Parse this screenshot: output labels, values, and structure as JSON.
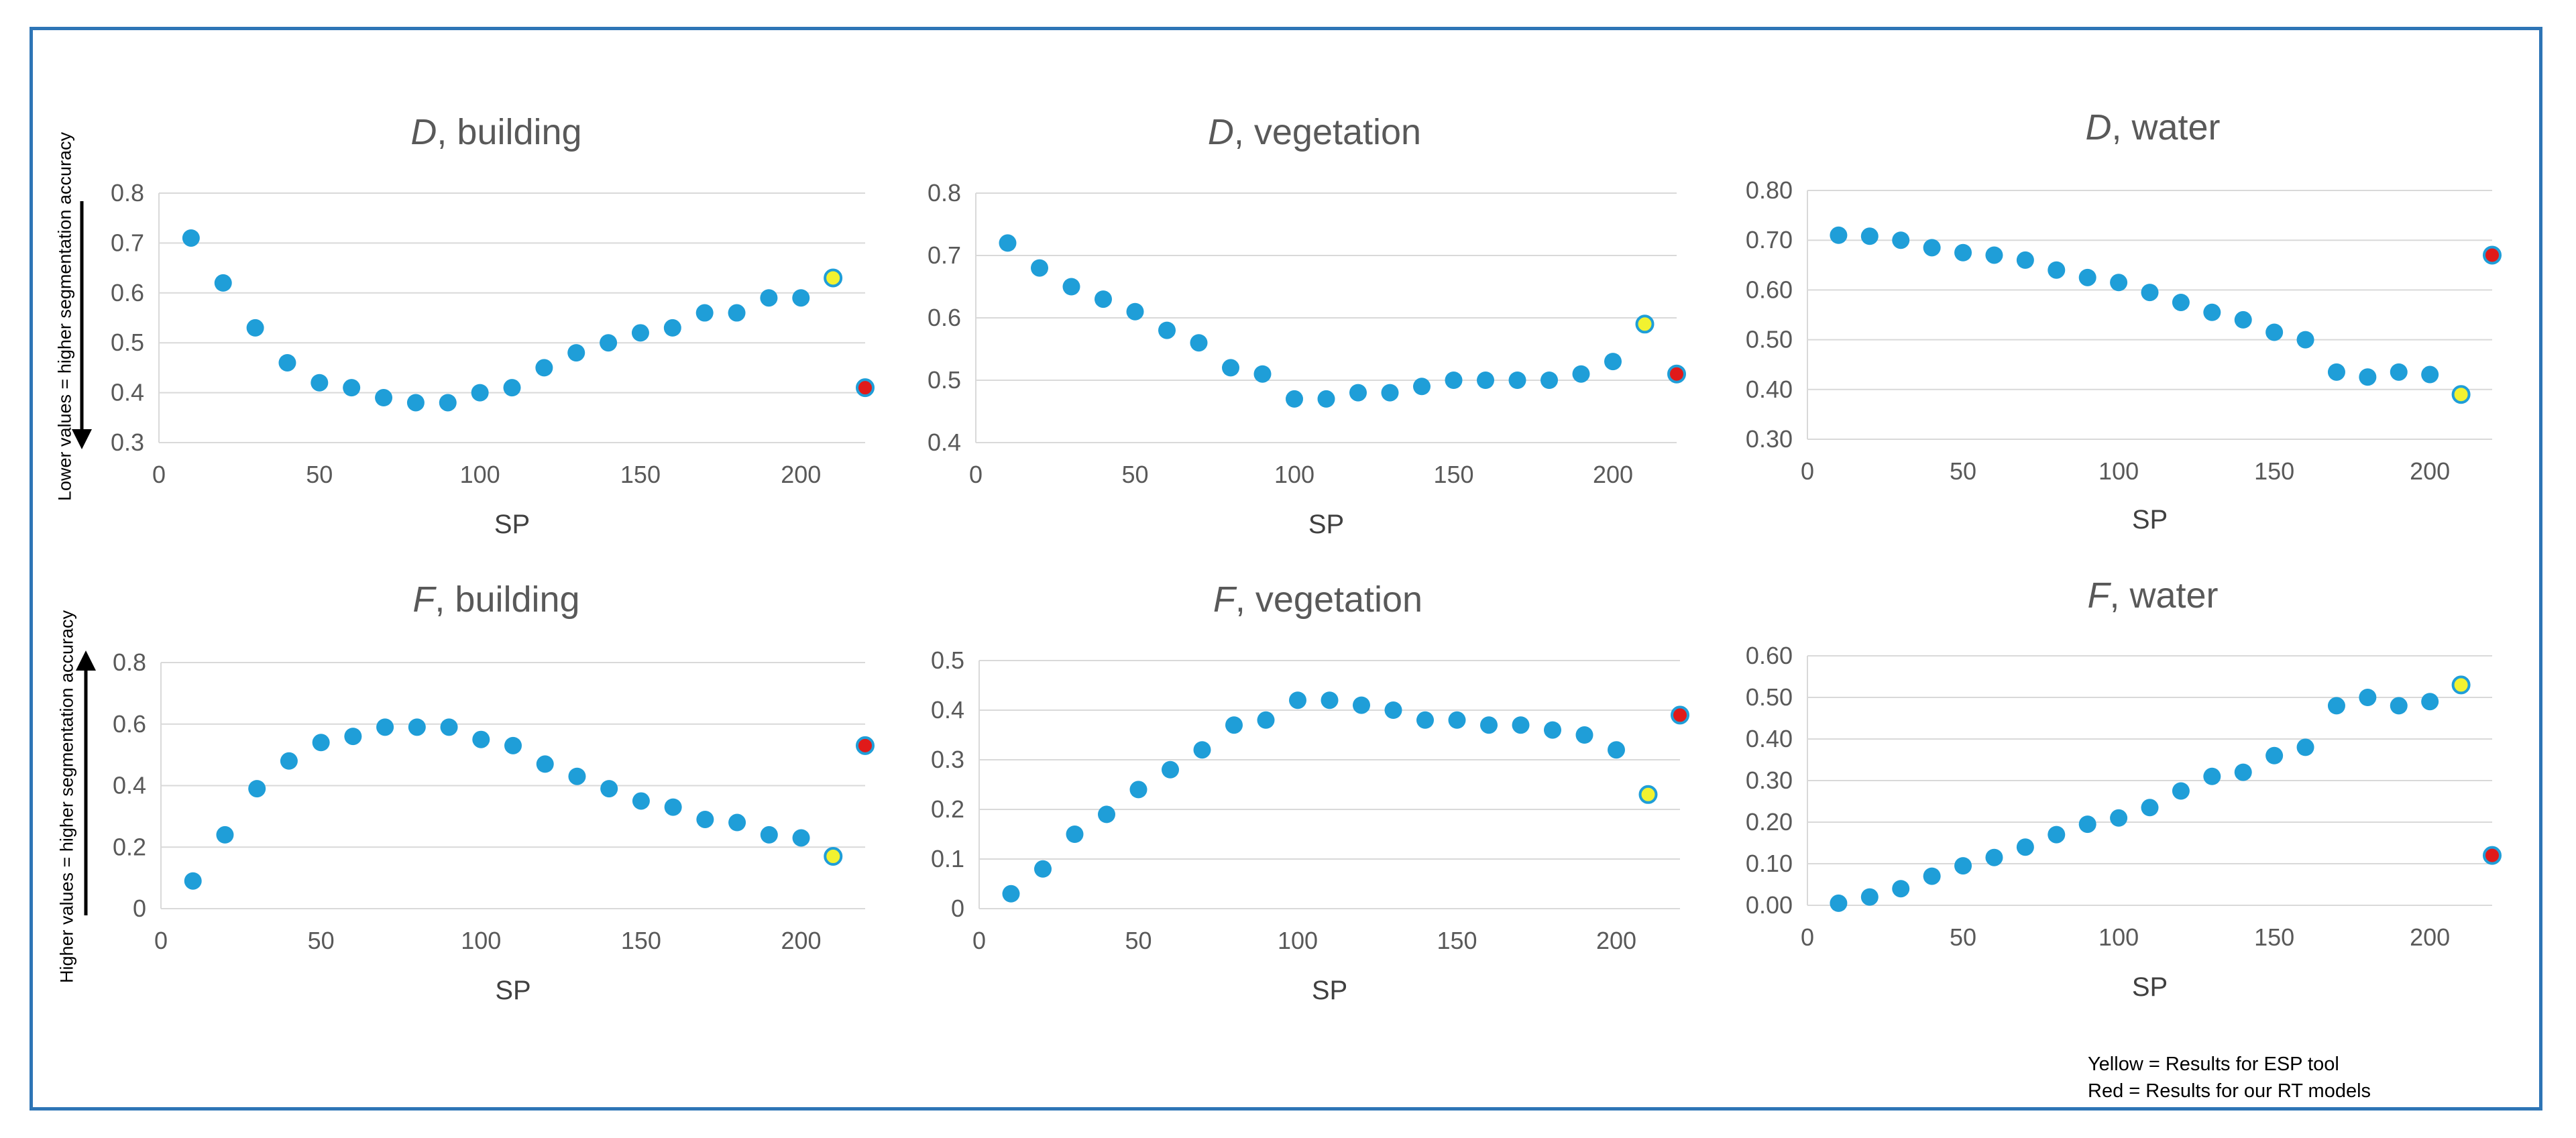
{
  "side_labels": {
    "top": "Lower values = higher segmentation accuracy",
    "bottom": "Higher values = higher segmentation accuracy"
  },
  "legend_notes": {
    "yellow": "Yellow = Results for ESP tool",
    "red": "Red = Results for our RT models"
  },
  "colors": {
    "point": "#1F9ED8",
    "esp": "#F2F230",
    "rt": "#E01A1A",
    "frame": "#2E75B6",
    "grid": "#D9D9D9"
  },
  "chart_data": [
    {
      "type": "scatter",
      "title_italic": "D",
      "title_rest": ", building",
      "xlabel": "SP",
      "ylabel": "",
      "xlim": [
        0,
        220
      ],
      "xticks": [
        0,
        50,
        100,
        150,
        200
      ],
      "ylim": [
        0.3,
        0.8
      ],
      "yticks": [
        "0.3",
        "0.4",
        "0.5",
        "0.6",
        "0.7",
        "0.8"
      ],
      "grid": true,
      "x": [
        10,
        20,
        30,
        40,
        50,
        60,
        70,
        80,
        90,
        100,
        110,
        120,
        130,
        140,
        150,
        160,
        170,
        180,
        190,
        200
      ],
      "y": [
        0.71,
        0.62,
        0.53,
        0.46,
        0.42,
        0.41,
        0.39,
        0.38,
        0.38,
        0.4,
        0.41,
        0.45,
        0.48,
        0.5,
        0.52,
        0.53,
        0.56,
        0.56,
        0.59,
        0.59
      ],
      "esp": {
        "x": 210,
        "y": 0.63
      },
      "rt": {
        "x": 220,
        "y": 0.41
      }
    },
    {
      "type": "scatter",
      "title_italic": "D",
      "title_rest": ", vegetation",
      "xlabel": "SP",
      "ylabel": "",
      "xlim": [
        0,
        220
      ],
      "xticks": [
        0,
        50,
        100,
        150,
        200
      ],
      "ylim": [
        0.4,
        0.8
      ],
      "yticks": [
        "0.4",
        "0.5",
        "0.6",
        "0.7",
        "0.8"
      ],
      "grid": true,
      "x": [
        10,
        20,
        30,
        40,
        50,
        60,
        70,
        80,
        90,
        100,
        110,
        120,
        130,
        140,
        150,
        160,
        170,
        180,
        190,
        200
      ],
      "y": [
        0.72,
        0.68,
        0.65,
        0.63,
        0.61,
        0.58,
        0.56,
        0.52,
        0.51,
        0.47,
        0.47,
        0.48,
        0.48,
        0.49,
        0.5,
        0.5,
        0.5,
        0.5,
        0.51,
        0.53
      ],
      "esp": {
        "x": 210,
        "y": 0.59
      },
      "rt": {
        "x": 220,
        "y": 0.51
      }
    },
    {
      "type": "scatter",
      "title_italic": "D",
      "title_rest": ", water",
      "xlabel": "SP",
      "ylabel": "",
      "xlim": [
        0,
        220
      ],
      "xticks": [
        0,
        50,
        100,
        150,
        200
      ],
      "ylim": [
        0.3,
        0.8
      ],
      "yticks": [
        "0.30",
        "0.40",
        "0.50",
        "0.60",
        "0.70",
        "0.80"
      ],
      "grid": true,
      "x": [
        10,
        20,
        30,
        40,
        50,
        60,
        70,
        80,
        90,
        100,
        110,
        120,
        130,
        140,
        150,
        160,
        170,
        180,
        190,
        200
      ],
      "y": [
        0.71,
        0.708,
        0.7,
        0.685,
        0.675,
        0.67,
        0.66,
        0.64,
        0.625,
        0.615,
        0.595,
        0.575,
        0.555,
        0.54,
        0.515,
        0.5,
        0.435,
        0.425,
        0.435,
        0.43
      ],
      "esp": {
        "x": 210,
        "y": 0.39
      },
      "rt": {
        "x": 220,
        "y": 0.67
      }
    },
    {
      "type": "scatter",
      "title_italic": "F",
      "title_rest": ", building",
      "xlabel": "SP",
      "ylabel": "",
      "xlim": [
        0,
        220
      ],
      "xticks": [
        0,
        50,
        100,
        150,
        200
      ],
      "ylim": [
        0,
        0.8
      ],
      "yticks": [
        "0",
        "0.2",
        "0.4",
        "0.6",
        "0.8"
      ],
      "grid": true,
      "x": [
        10,
        20,
        30,
        40,
        50,
        60,
        70,
        80,
        90,
        100,
        110,
        120,
        130,
        140,
        150,
        160,
        170,
        180,
        190,
        200
      ],
      "y": [
        0.09,
        0.24,
        0.39,
        0.48,
        0.54,
        0.56,
        0.59,
        0.59,
        0.59,
        0.55,
        0.53,
        0.47,
        0.43,
        0.39,
        0.35,
        0.33,
        0.29,
        0.28,
        0.24,
        0.23
      ],
      "esp": {
        "x": 210,
        "y": 0.17
      },
      "rt": {
        "x": 220,
        "y": 0.53
      }
    },
    {
      "type": "scatter",
      "title_italic": "F",
      "title_rest": ", vegetation",
      "xlabel": "SP",
      "ylabel": "",
      "xlim": [
        0,
        220
      ],
      "xticks": [
        0,
        50,
        100,
        150,
        200
      ],
      "ylim": [
        0,
        0.5
      ],
      "yticks": [
        "0",
        "0.1",
        "0.2",
        "0.3",
        "0.4",
        "0.5"
      ],
      "grid": true,
      "x": [
        10,
        20,
        30,
        40,
        50,
        60,
        70,
        80,
        90,
        100,
        110,
        120,
        130,
        140,
        150,
        160,
        170,
        180,
        190,
        200
      ],
      "y": [
        0.03,
        0.08,
        0.15,
        0.19,
        0.24,
        0.28,
        0.32,
        0.37,
        0.38,
        0.42,
        0.42,
        0.41,
        0.4,
        0.38,
        0.38,
        0.37,
        0.37,
        0.36,
        0.35,
        0.32
      ],
      "esp": {
        "x": 210,
        "y": 0.23
      },
      "rt": {
        "x": 220,
        "y": 0.39
      }
    },
    {
      "type": "scatter",
      "title_italic": "F",
      "title_rest": ", water",
      "xlabel": "SP",
      "ylabel": "",
      "xlim": [
        0,
        220
      ],
      "xticks": [
        0,
        50,
        100,
        150,
        200
      ],
      "ylim": [
        0,
        0.6
      ],
      "yticks": [
        "0.00",
        "0.10",
        "0.20",
        "0.30",
        "0.40",
        "0.50",
        "0.60"
      ],
      "grid": true,
      "x": [
        10,
        20,
        30,
        40,
        50,
        60,
        70,
        80,
        90,
        100,
        110,
        120,
        130,
        140,
        150,
        160,
        170,
        180,
        190,
        200
      ],
      "y": [
        0.005,
        0.02,
        0.04,
        0.07,
        0.095,
        0.115,
        0.14,
        0.17,
        0.195,
        0.21,
        0.235,
        0.275,
        0.31,
        0.32,
        0.36,
        0.38,
        0.48,
        0.5,
        0.48,
        0.49
      ],
      "esp": {
        "x": 210,
        "y": 0.53
      },
      "rt": {
        "x": 220,
        "y": 0.12
      }
    }
  ]
}
